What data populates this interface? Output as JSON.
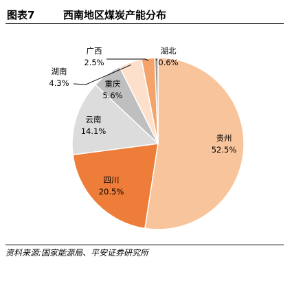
{
  "header": {
    "figure_label": "图表7",
    "title": "西南地区煤炭产能分布"
  },
  "footer": {
    "source": "资料来源:国家能源局、平安证券研究所"
  },
  "chart_data": {
    "type": "pie",
    "slices": [
      {
        "name": "贵州",
        "value": 52.5,
        "label": "52.5%",
        "color": "#F8C49C"
      },
      {
        "name": "四川",
        "value": 20.5,
        "label": "20.5%",
        "color": "#EE7D3A"
      },
      {
        "name": "云南",
        "value": 14.1,
        "label": "14.1%",
        "color": "#DCDCDC"
      },
      {
        "name": "重庆",
        "value": 5.6,
        "label": "5.6%",
        "color": "#BFBFBF"
      },
      {
        "name": "湖南",
        "value": 4.3,
        "label": "4.3%",
        "color": "#FCE0CC"
      },
      {
        "name": "广西",
        "value": 2.5,
        "label": "2.5%",
        "color": "#F4A46A"
      },
      {
        "name": "湖北",
        "value": 0.6,
        "label": "0.6%",
        "color": "#9A9A9A"
      }
    ]
  }
}
